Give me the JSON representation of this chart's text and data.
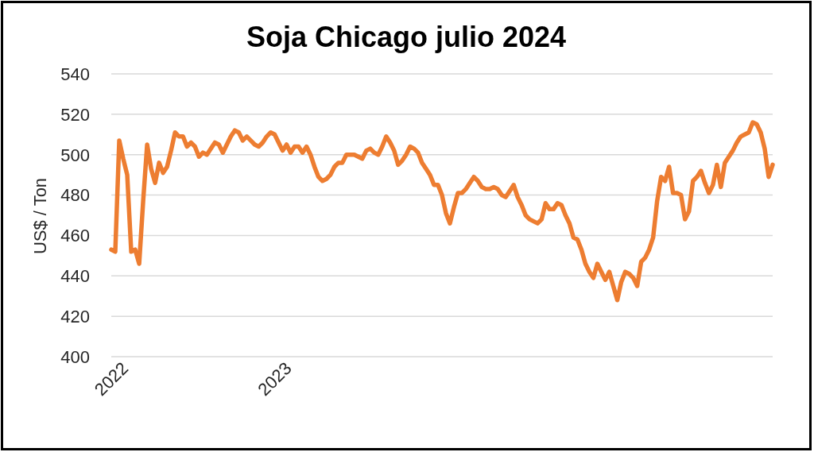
{
  "chart_data": {
    "type": "line",
    "title": "Soja Chicago julio 2024",
    "ylabel": "US$ / Ton",
    "categories": [
      "2022",
      null,
      null,
      null,
      null,
      null,
      null,
      null,
      null,
      null,
      null,
      null,
      null,
      null,
      null,
      null,
      null,
      null,
      null,
      null,
      null,
      null,
      null,
      null,
      null,
      null,
      null,
      null,
      null,
      null,
      null,
      null,
      null,
      null,
      null,
      null,
      null,
      null,
      null,
      null,
      null,
      "2023",
      null,
      null,
      null,
      null,
      null,
      null,
      null,
      null,
      null,
      null,
      null,
      null,
      null,
      null,
      null,
      null,
      null,
      null,
      null,
      null,
      null,
      null,
      null,
      null,
      null,
      null,
      null,
      null,
      null,
      null,
      null,
      null,
      null,
      null,
      null,
      null,
      null,
      null,
      null,
      null,
      null,
      null,
      null,
      null,
      null,
      null,
      null,
      null,
      null,
      null,
      null,
      null,
      null,
      null,
      null,
      null,
      null,
      null,
      null,
      null,
      null,
      null,
      null,
      null,
      null,
      null,
      null,
      null,
      null,
      null,
      null,
      null,
      null,
      null,
      null,
      null,
      null,
      null,
      null,
      null,
      null,
      null,
      null,
      null,
      null,
      null,
      null,
      null,
      null,
      null,
      null,
      null,
      null,
      null,
      null,
      null,
      null,
      null,
      null,
      null,
      null,
      null,
      null,
      null,
      null,
      null,
      null,
      null,
      null,
      null,
      null,
      null,
      null,
      null,
      null,
      null,
      null,
      null,
      null,
      null,
      null,
      null,
      null,
      null,
      null
    ],
    "series": [
      {
        "color": "#ed7d31",
        "values": [
          453,
          452,
          507,
          498,
          490,
          452,
          453,
          446,
          477,
          505,
          493,
          486,
          496,
          491,
          494,
          502,
          511,
          509,
          509,
          504,
          506,
          504,
          499,
          501,
          500,
          503,
          506,
          505,
          501,
          505,
          509,
          512,
          511,
          507,
          509,
          507,
          505,
          504,
          506,
          509,
          511,
          510,
          506,
          502,
          505,
          501,
          504,
          504,
          501,
          504,
          500,
          494,
          489,
          487,
          488,
          490,
          494,
          496,
          496,
          500,
          500,
          500,
          499,
          498,
          502,
          503,
          501,
          500,
          504,
          509,
          506,
          502,
          495,
          497,
          500,
          504,
          503,
          501,
          496,
          493,
          490,
          485,
          485,
          480,
          471,
          466,
          474,
          481,
          481,
          483,
          486,
          489,
          487,
          484,
          483,
          483,
          484,
          483,
          480,
          479,
          482,
          485,
          479,
          475,
          470,
          468,
          467,
          466,
          468,
          476,
          473,
          473,
          476,
          475,
          470,
          466,
          459,
          458,
          453,
          446,
          442,
          439,
          446,
          442,
          438,
          442,
          435,
          428,
          437,
          442,
          441,
          439,
          435,
          447,
          449,
          453,
          459,
          477,
          489,
          487,
          494,
          481,
          481,
          480,
          468,
          472,
          487,
          489,
          492,
          486,
          481,
          485,
          495,
          484,
          496,
          499,
          502,
          506,
          509,
          510,
          511,
          516,
          515,
          511,
          503,
          489,
          495
        ]
      }
    ],
    "ylim": [
      400,
      540
    ],
    "yticks": [
      400,
      420,
      440,
      460,
      480,
      500,
      520,
      540
    ],
    "grid": "y",
    "marker": "none",
    "line_style": "solid"
  }
}
